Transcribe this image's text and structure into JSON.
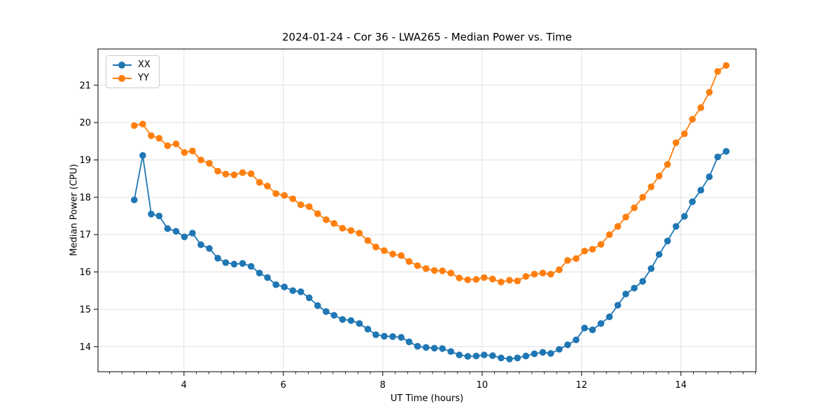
{
  "figure": {
    "background": "#ffffff"
  },
  "chart_data": {
    "type": "line",
    "title": "2024-01-24 - Cor 36 - LWA265 - Median Power vs. Time",
    "xlabel": "UT Time (hours)",
    "ylabel": "Median Power (CPU)",
    "xlim": [
      2.27,
      15.51
    ],
    "ylim": [
      13.33,
      21.97
    ],
    "x_major_ticks": [
      4,
      6,
      8,
      10,
      12,
      14
    ],
    "x_minor_tick_step": 0.25,
    "y_major_ticks": [
      14,
      15,
      16,
      17,
      18,
      19,
      20,
      21
    ],
    "grid": true,
    "grid_color": "#e0e0e0",
    "legend_position": "upper left",
    "x": [
      3.0,
      3.17,
      3.34,
      3.5,
      3.67,
      3.84,
      4.01,
      4.17,
      4.34,
      4.51,
      4.68,
      4.84,
      5.01,
      5.18,
      5.35,
      5.52,
      5.68,
      5.85,
      6.02,
      6.19,
      6.35,
      6.52,
      6.69,
      6.86,
      7.02,
      7.19,
      7.36,
      7.53,
      7.7,
      7.86,
      8.03,
      8.2,
      8.37,
      8.53,
      8.7,
      8.87,
      9.04,
      9.2,
      9.37,
      9.54,
      9.71,
      9.88,
      10.04,
      10.21,
      10.38,
      10.55,
      10.71,
      10.88,
      11.05,
      11.22,
      11.38,
      11.55,
      11.72,
      11.89,
      12.06,
      12.22,
      12.39,
      12.56,
      12.73,
      12.89,
      13.06,
      13.23,
      13.4,
      13.56,
      13.73,
      13.9,
      14.07,
      14.23,
      14.4,
      14.57,
      14.74,
      14.91
    ],
    "series": [
      {
        "name": "XX",
        "color": "#1f77b4",
        "values": [
          17.93,
          19.12,
          17.55,
          17.5,
          17.16,
          17.09,
          16.94,
          17.04,
          16.73,
          16.63,
          16.37,
          16.25,
          16.21,
          16.23,
          16.15,
          15.97,
          15.85,
          15.66,
          15.6,
          15.5,
          15.47,
          15.31,
          15.1,
          14.94,
          14.84,
          14.73,
          14.7,
          14.62,
          14.47,
          14.32,
          14.28,
          14.27,
          14.25,
          14.13,
          14.01,
          13.98,
          13.96,
          13.95,
          13.87,
          13.78,
          13.74,
          13.75,
          13.78,
          13.76,
          13.7,
          13.67,
          13.7,
          13.75,
          13.81,
          13.85,
          13.82,
          13.93,
          14.05,
          14.18,
          14.5,
          14.45,
          14.62,
          14.8,
          15.11,
          15.41,
          15.57,
          15.75,
          16.09,
          16.47,
          16.83,
          17.22,
          17.49,
          17.88,
          18.19,
          18.55,
          19.08,
          19.23
        ]
      },
      {
        "name": "YY",
        "color": "#ff7f0e",
        "values": [
          19.92,
          19.96,
          19.65,
          19.58,
          19.38,
          19.43,
          19.2,
          19.24,
          19.0,
          18.91,
          18.7,
          18.62,
          18.6,
          18.66,
          18.63,
          18.4,
          18.3,
          18.1,
          18.05,
          17.96,
          17.8,
          17.75,
          17.56,
          17.4,
          17.3,
          17.17,
          17.11,
          17.04,
          16.84,
          16.67,
          16.57,
          16.48,
          16.44,
          16.28,
          16.17,
          16.09,
          16.04,
          16.03,
          15.97,
          15.84,
          15.79,
          15.8,
          15.85,
          15.81,
          15.73,
          15.78,
          15.76,
          15.88,
          15.94,
          15.97,
          15.94,
          16.06,
          16.31,
          16.36,
          16.56,
          16.61,
          16.74,
          17.0,
          17.22,
          17.47,
          17.72,
          18.0,
          18.28,
          18.57,
          18.88,
          19.46,
          19.7,
          20.09,
          20.4,
          20.81,
          21.37,
          21.53
        ]
      }
    ]
  }
}
